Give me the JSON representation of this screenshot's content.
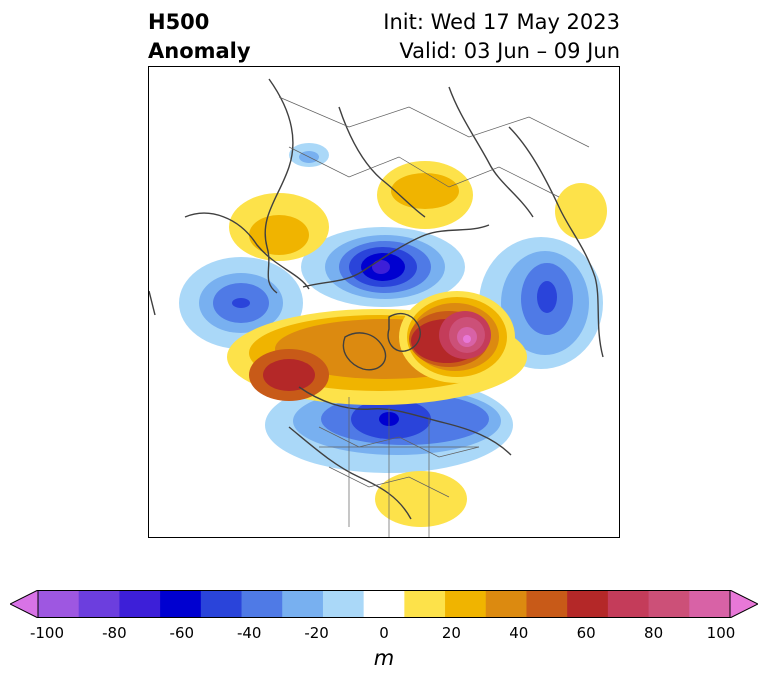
{
  "title": {
    "left_line1": "H500",
    "left_line2": "Anomaly",
    "init": "Init: Wed 17 May 2023",
    "valid": "Valid: 03 Jun – 09 Jun"
  },
  "colorbar": {
    "unit_label": "m",
    "ticks": [
      "-100",
      "-80",
      "-60",
      "-40",
      "-20",
      "0",
      "20",
      "40",
      "60",
      "80",
      "100"
    ],
    "levels": [
      -100,
      -90,
      -80,
      -70,
      -60,
      -50,
      -40,
      -30,
      -20,
      -10,
      10,
      20,
      30,
      40,
      50,
      60,
      70,
      80,
      90,
      100
    ],
    "colors": [
      "#d873e6",
      "#9e57e1",
      "#6c3ede",
      "#3d1fd8",
      "#0000d0",
      "#2a44da",
      "#4f7ae6",
      "#78b0f0",
      "#aad8f8",
      "#ffffff",
      "#fde24a",
      "#f0b400",
      "#dc8a10",
      "#c85a18",
      "#b42828",
      "#c43c5a",
      "#cc5078",
      "#d862a6",
      "#e878d8"
    ],
    "extend": "both"
  }
}
